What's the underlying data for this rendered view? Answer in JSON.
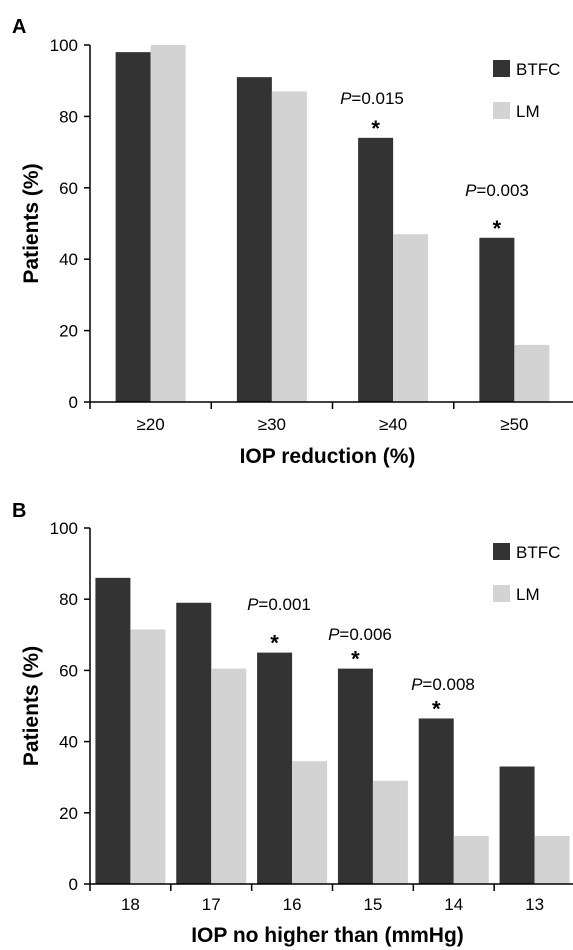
{
  "chart_data": [
    {
      "panel_label": "A",
      "type": "bar",
      "categories": [
        "≥20",
        "≥30",
        "≥40",
        "≥50"
      ],
      "series": [
        {
          "name": "BTFC",
          "values": [
            98,
            91,
            74,
            46
          ]
        },
        {
          "name": "LM",
          "values": [
            100,
            87,
            47,
            16
          ]
        }
      ],
      "xlabel": "IOP reduction (%)",
      "ylabel": "Patients (%)",
      "ylim": [
        0,
        100
      ],
      "yticks": [
        0,
        20,
        40,
        60,
        80,
        100
      ],
      "grid": false,
      "legend_position": "top-right",
      "annotations": [
        {
          "category": "≥40",
          "p_prefix": "P",
          "p_value": "=0.015",
          "marker": "*"
        },
        {
          "category": "≥50",
          "p_prefix": "P",
          "p_value": "=0.003",
          "marker": "*"
        }
      ]
    },
    {
      "panel_label": "B",
      "type": "bar",
      "categories": [
        "18",
        "17",
        "16",
        "15",
        "14",
        "13"
      ],
      "series": [
        {
          "name": "BTFC",
          "values": [
            86,
            79,
            65,
            60.5,
            46.5,
            33
          ]
        },
        {
          "name": "LM",
          "values": [
            71.5,
            60.5,
            34.5,
            29,
            13.5,
            13.5
          ]
        }
      ],
      "xlabel": "IOP no higher than (mmHg)",
      "ylabel": "Patients (%)",
      "ylim": [
        0,
        100
      ],
      "yticks": [
        0,
        20,
        40,
        60,
        80,
        100
      ],
      "grid": false,
      "legend_position": "top-right",
      "annotations": [
        {
          "category": "16",
          "p_prefix": "P",
          "p_value": "=0.001",
          "marker": "*"
        },
        {
          "category": "15",
          "p_prefix": "P",
          "p_value": "=0.006",
          "marker": "*"
        },
        {
          "category": "14",
          "p_prefix": "P",
          "p_value": "=0.008",
          "marker": "*"
        }
      ]
    }
  ],
  "colors": {
    "BTFC": "#333333",
    "LM": "#d3d3d3",
    "axis": "#000000"
  }
}
